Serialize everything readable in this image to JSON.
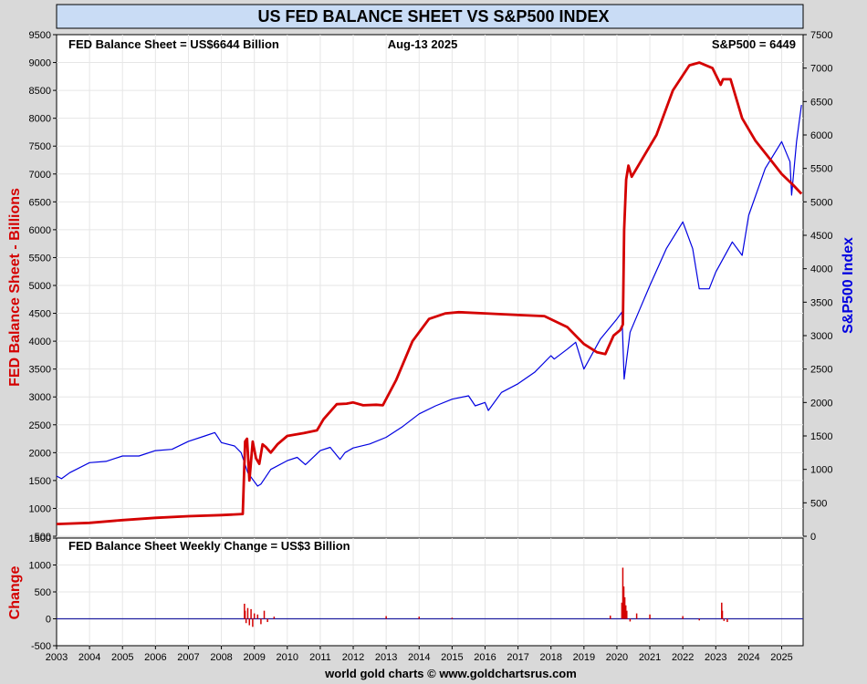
{
  "header": {
    "title": "US FED BALANCE SHEET VS S&P500 INDEX"
  },
  "footer": {
    "credit": "world gold charts © www.goldchartsrus.com"
  },
  "colors": {
    "fed": "#d40000",
    "spx": "#0000e0",
    "change": "#d40000",
    "change_zero": "#2020a0",
    "title_bg": "#c9dcf5"
  },
  "chart_data": [
    {
      "type": "line",
      "annotations": {
        "left": "FED Balance Sheet = US$6644 Billion",
        "center": "Aug-13  2025",
        "right": "S&P500 = 6449"
      },
      "ylabel_left": "FED Balance Sheet - Billions",
      "ylabel_right": "S&P500 Index",
      "ylim_left": [
        500,
        9500
      ],
      "ylim_right": [
        0,
        7500
      ],
      "yticks_left": [
        500,
        1000,
        1500,
        2000,
        2500,
        3000,
        3500,
        4000,
        4500,
        5000,
        5500,
        6000,
        6500,
        7000,
        7500,
        8000,
        8500,
        9000,
        9500
      ],
      "yticks_right": [
        0,
        500,
        1000,
        1500,
        2000,
        2500,
        3000,
        3500,
        4000,
        4500,
        5000,
        5500,
        6000,
        6500,
        7000,
        7500
      ],
      "xlim": [
        2003.0,
        2025.65
      ],
      "x_ticks": [
        "2003",
        "2004",
        "2005",
        "2006",
        "2007",
        "2008",
        "2009",
        "2010",
        "2011",
        "2012",
        "2013",
        "2014",
        "2015",
        "2016",
        "2017",
        "2018",
        "2019",
        "2020",
        "2021",
        "2022",
        "2023",
        "2024",
        "2025"
      ],
      "grid": true,
      "series": [
        {
          "axis": "left",
          "x": [
            2003.0,
            2004.0,
            2005.0,
            2006.0,
            2007.0,
            2008.0,
            2008.65,
            2008.72,
            2008.78,
            2008.85,
            2008.95,
            2009.05,
            2009.15,
            2009.25,
            2009.35,
            2009.5,
            2009.7,
            2010.0,
            2010.5,
            2010.9,
            2011.1,
            2011.5,
            2011.8,
            2012.0,
            2012.3,
            2012.7,
            2012.9,
            2013.3,
            2013.8,
            2014.3,
            2014.8,
            2015.2,
            2016.0,
            2017.0,
            2017.8,
            2018.5,
            2019.0,
            2019.4,
            2019.65,
            2019.9,
            2020.1,
            2020.18,
            2020.22,
            2020.28,
            2020.35,
            2020.45,
            2020.8,
            2021.2,
            2021.7,
            2022.2,
            2022.5,
            2022.9,
            2023.15,
            2023.22,
            2023.45,
            2023.8,
            2024.2,
            2024.6,
            2025.0,
            2025.35,
            2025.6
          ],
          "values": [
            720,
            740,
            790,
            830,
            860,
            880,
            900,
            2200,
            2250,
            1500,
            2200,
            1900,
            1800,
            2150,
            2100,
            2000,
            2150,
            2300,
            2350,
            2400,
            2600,
            2870,
            2880,
            2900,
            2850,
            2860,
            2850,
            3300,
            4000,
            4400,
            4500,
            4520,
            4500,
            4470,
            4450,
            4250,
            3950,
            3800,
            3770,
            4100,
            4200,
            4300,
            6000,
            6900,
            7150,
            6950,
            7300,
            7700,
            8500,
            8950,
            9000,
            8900,
            8600,
            8700,
            8700,
            8000,
            7600,
            7300,
            7000,
            6800,
            6644
          ]
        },
        {
          "axis": "right",
          "x": [
            2003.0,
            2003.15,
            2003.4,
            2004.0,
            2004.5,
            2005.0,
            2005.5,
            2006.0,
            2006.5,
            2007.0,
            2007.5,
            2007.8,
            2008.0,
            2008.4,
            2008.6,
            2008.8,
            2008.95,
            2009.1,
            2009.2,
            2009.5,
            2010.0,
            2010.3,
            2010.55,
            2011.0,
            2011.3,
            2011.6,
            2011.75,
            2012.0,
            2012.5,
            2013.0,
            2013.5,
            2014.0,
            2014.5,
            2015.0,
            2015.5,
            2015.7,
            2016.0,
            2016.1,
            2016.5,
            2017.0,
            2017.5,
            2018.0,
            2018.1,
            2018.5,
            2018.75,
            2019.0,
            2019.5,
            2020.0,
            2020.15,
            2020.22,
            2020.4,
            2020.7,
            2021.0,
            2021.5,
            2022.0,
            2022.3,
            2022.5,
            2022.8,
            2023.0,
            2023.5,
            2023.8,
            2024.0,
            2024.5,
            2025.0,
            2025.25,
            2025.3,
            2025.45,
            2025.6
          ],
          "values": [
            900,
            860,
            950,
            1100,
            1120,
            1200,
            1200,
            1280,
            1300,
            1420,
            1500,
            1550,
            1400,
            1350,
            1250,
            950,
            850,
            750,
            780,
            1000,
            1130,
            1180,
            1070,
            1280,
            1330,
            1150,
            1250,
            1320,
            1380,
            1480,
            1640,
            1830,
            1950,
            2050,
            2100,
            1950,
            2000,
            1880,
            2150,
            2280,
            2450,
            2700,
            2650,
            2800,
            2900,
            2500,
            2950,
            3250,
            3350,
            2350,
            3050,
            3400,
            3750,
            4300,
            4700,
            4300,
            3700,
            3700,
            3950,
            4400,
            4200,
            4800,
            5500,
            5900,
            5600,
            5100,
            5900,
            6449
          ]
        }
      ]
    },
    {
      "type": "line",
      "annotation": "FED Balance Sheet Weekly Change = US$3 Billion",
      "ylabel": "Change",
      "ylim": [
        -500,
        1500
      ],
      "yticks": [
        -500,
        0,
        500,
        1000,
        1500
      ],
      "xlim": [
        2003.0,
        2025.65
      ],
      "series": [
        {
          "x": [
            2008.7,
            2008.72,
            2008.75,
            2008.8,
            2008.85,
            2008.9,
            2008.95,
            2009.0,
            2009.1,
            2009.2,
            2009.3,
            2009.4,
            2009.6,
            2013.0,
            2014.0,
            2015.0,
            2019.8,
            2020.15,
            2020.18,
            2020.21,
            2020.24,
            2020.27,
            2020.3,
            2020.4,
            2020.6,
            2021.0,
            2022.0,
            2022.5,
            2023.18,
            2023.2,
            2023.25,
            2023.35
          ],
          "values": [
            280,
            150,
            -80,
            200,
            -120,
            180,
            -150,
            100,
            80,
            -100,
            150,
            -60,
            40,
            50,
            40,
            20,
            60,
            300,
            950,
            600,
            400,
            250,
            150,
            -50,
            100,
            80,
            50,
            -30,
            300,
            150,
            -40,
            -60
          ]
        }
      ]
    }
  ]
}
